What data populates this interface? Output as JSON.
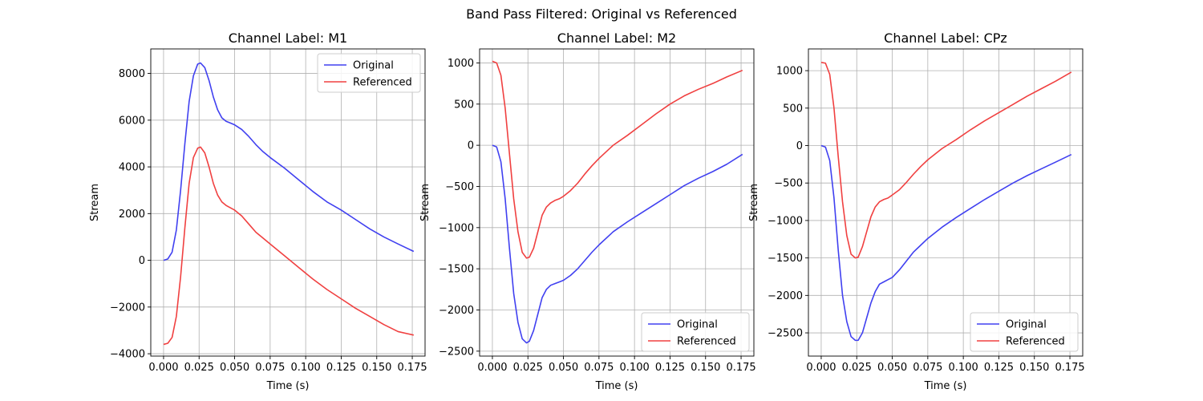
{
  "figure": {
    "suptitle": "Band Pass Filtered: Original vs Referenced"
  },
  "colors": {
    "original": "#4040f0",
    "referenced": "#f04040",
    "grid": "#b0b0b0",
    "axes": "#000000"
  },
  "chart_data": [
    {
      "type": "line",
      "title": "Channel Label: M1",
      "xlabel": "Time (s)",
      "ylabel": "Stream",
      "xlim": [
        -0.009,
        0.184
      ],
      "ylim": [
        -4100,
        9050
      ],
      "xticks": [
        0.0,
        0.025,
        0.05,
        0.075,
        0.1,
        0.125,
        0.15,
        0.175
      ],
      "xtick_labels": [
        "0.000",
        "0.025",
        "0.050",
        "0.075",
        "0.100",
        "0.125",
        "0.150",
        "0.175"
      ],
      "yticks": [
        -4000,
        -2000,
        0,
        2000,
        4000,
        6000,
        8000
      ],
      "ytick_labels": [
        "−4000",
        "−2000",
        "0",
        "2000",
        "4000",
        "6000",
        "8000"
      ],
      "grid": true,
      "legend_loc": "upper right",
      "series": [
        {
          "name": "Original",
          "color_key": "original",
          "x": [
            0.0,
            0.003,
            0.006,
            0.009,
            0.012,
            0.015,
            0.018,
            0.021,
            0.024,
            0.026,
            0.029,
            0.032,
            0.035,
            0.038,
            0.041,
            0.044,
            0.047,
            0.05,
            0.055,
            0.06,
            0.065,
            0.07,
            0.075,
            0.085,
            0.095,
            0.105,
            0.115,
            0.125,
            0.135,
            0.145,
            0.155,
            0.165,
            0.176
          ],
          "y": [
            0,
            60,
            350,
            1300,
            3000,
            5000,
            6800,
            7900,
            8400,
            8450,
            8250,
            7700,
            7000,
            6450,
            6100,
            5950,
            5880,
            5800,
            5600,
            5300,
            4950,
            4650,
            4400,
            3950,
            3450,
            2950,
            2500,
            2150,
            1750,
            1350,
            1000,
            700,
            380
          ]
        },
        {
          "name": "Referenced",
          "color_key": "referenced",
          "x": [
            0.0,
            0.003,
            0.006,
            0.009,
            0.012,
            0.015,
            0.018,
            0.021,
            0.024,
            0.026,
            0.029,
            0.032,
            0.035,
            0.038,
            0.041,
            0.044,
            0.047,
            0.05,
            0.055,
            0.06,
            0.065,
            0.07,
            0.075,
            0.085,
            0.095,
            0.105,
            0.115,
            0.125,
            0.135,
            0.145,
            0.155,
            0.165,
            0.176
          ],
          "y": [
            -3600,
            -3550,
            -3300,
            -2400,
            -700,
            1400,
            3300,
            4400,
            4800,
            4850,
            4600,
            4000,
            3300,
            2800,
            2500,
            2350,
            2250,
            2150,
            1900,
            1550,
            1200,
            950,
            700,
            200,
            -300,
            -800,
            -1250,
            -1650,
            -2050,
            -2400,
            -2750,
            -3050,
            -3200
          ]
        }
      ]
    },
    {
      "type": "line",
      "title": "Channel Label: M2",
      "xlabel": "Time (s)",
      "ylabel": "Stream",
      "xlim": [
        -0.009,
        0.184
      ],
      "ylim": [
        -2560,
        1170
      ],
      "xticks": [
        0.0,
        0.025,
        0.05,
        0.075,
        0.1,
        0.125,
        0.15,
        0.175
      ],
      "xtick_labels": [
        "0.000",
        "0.025",
        "0.050",
        "0.075",
        "0.100",
        "0.125",
        "0.150",
        "0.175"
      ],
      "yticks": [
        -2500,
        -2000,
        -1500,
        -1000,
        -500,
        0,
        500,
        1000
      ],
      "ytick_labels": [
        "−2500",
        "−2000",
        "−1500",
        "−1000",
        "−500",
        "0",
        "500",
        "1000"
      ],
      "grid": true,
      "legend_loc": "lower right",
      "series": [
        {
          "name": "Original",
          "color_key": "original",
          "x": [
            0.0,
            0.003,
            0.006,
            0.009,
            0.012,
            0.015,
            0.018,
            0.021,
            0.024,
            0.026,
            0.029,
            0.032,
            0.035,
            0.038,
            0.041,
            0.044,
            0.047,
            0.05,
            0.055,
            0.06,
            0.065,
            0.07,
            0.075,
            0.085,
            0.095,
            0.105,
            0.115,
            0.125,
            0.135,
            0.145,
            0.155,
            0.165,
            0.176
          ],
          "y": [
            0,
            -20,
            -200,
            -650,
            -1250,
            -1800,
            -2150,
            -2350,
            -2400,
            -2380,
            -2250,
            -2050,
            -1850,
            -1750,
            -1700,
            -1680,
            -1660,
            -1640,
            -1580,
            -1500,
            -1400,
            -1300,
            -1210,
            -1050,
            -930,
            -820,
            -710,
            -600,
            -490,
            -400,
            -320,
            -230,
            -110
          ]
        },
        {
          "name": "Referenced",
          "color_key": "referenced",
          "x": [
            0.0,
            0.003,
            0.006,
            0.009,
            0.012,
            0.015,
            0.018,
            0.021,
            0.024,
            0.026,
            0.029,
            0.032,
            0.035,
            0.038,
            0.041,
            0.044,
            0.047,
            0.05,
            0.055,
            0.06,
            0.065,
            0.07,
            0.075,
            0.085,
            0.095,
            0.105,
            0.115,
            0.125,
            0.135,
            0.145,
            0.155,
            0.165,
            0.176
          ],
          "y": [
            1020,
            1000,
            850,
            450,
            -100,
            -650,
            -1050,
            -1300,
            -1370,
            -1360,
            -1250,
            -1050,
            -850,
            -750,
            -700,
            -670,
            -650,
            -620,
            -550,
            -460,
            -350,
            -250,
            -160,
            0,
            120,
            250,
            380,
            500,
            600,
            680,
            750,
            830,
            910
          ]
        }
      ]
    },
    {
      "type": "line",
      "title": "Channel Label: CPz",
      "xlabel": "Time (s)",
      "ylabel": "Stream",
      "xlim": [
        -0.009,
        0.184
      ],
      "ylim": [
        -2810,
        1290
      ],
      "xticks": [
        0.0,
        0.025,
        0.05,
        0.075,
        0.1,
        0.125,
        0.15,
        0.175
      ],
      "xtick_labels": [
        "0.000",
        "0.025",
        "0.050",
        "0.075",
        "0.100",
        "0.125",
        "0.150",
        "0.175"
      ],
      "yticks": [
        -2500,
        -2000,
        -1500,
        -1000,
        -500,
        0,
        500,
        1000
      ],
      "ytick_labels": [
        "−2500",
        "−2000",
        "−1500",
        "−1000",
        "−500",
        "0",
        "500",
        "1000"
      ],
      "grid": true,
      "legend_loc": "lower right",
      "series": [
        {
          "name": "Original",
          "color_key": "original",
          "x": [
            0.0,
            0.003,
            0.006,
            0.009,
            0.012,
            0.015,
            0.018,
            0.021,
            0.024,
            0.026,
            0.029,
            0.032,
            0.035,
            0.038,
            0.041,
            0.044,
            0.047,
            0.05,
            0.055,
            0.06,
            0.065,
            0.07,
            0.075,
            0.085,
            0.095,
            0.105,
            0.115,
            0.125,
            0.135,
            0.145,
            0.155,
            0.165,
            0.176
          ],
          "y": [
            0,
            -20,
            -200,
            -700,
            -1400,
            -2000,
            -2350,
            -2550,
            -2600,
            -2600,
            -2500,
            -2300,
            -2100,
            -1950,
            -1850,
            -1820,
            -1790,
            -1760,
            -1660,
            -1540,
            -1420,
            -1330,
            -1240,
            -1090,
            -960,
            -840,
            -720,
            -610,
            -500,
            -400,
            -310,
            -220,
            -120
          ]
        },
        {
          "name": "Referenced",
          "color_key": "referenced",
          "x": [
            0.0,
            0.003,
            0.006,
            0.009,
            0.012,
            0.015,
            0.018,
            0.021,
            0.024,
            0.026,
            0.029,
            0.032,
            0.035,
            0.038,
            0.041,
            0.044,
            0.047,
            0.05,
            0.055,
            0.06,
            0.065,
            0.07,
            0.075,
            0.085,
            0.095,
            0.105,
            0.115,
            0.125,
            0.135,
            0.145,
            0.155,
            0.165,
            0.176
          ],
          "y": [
            1110,
            1100,
            950,
            500,
            -150,
            -750,
            -1200,
            -1450,
            -1500,
            -1490,
            -1350,
            -1150,
            -950,
            -820,
            -750,
            -720,
            -700,
            -660,
            -590,
            -490,
            -380,
            -280,
            -190,
            -40,
            80,
            210,
            330,
            440,
            550,
            660,
            760,
            860,
            980
          ]
        }
      ]
    }
  ]
}
